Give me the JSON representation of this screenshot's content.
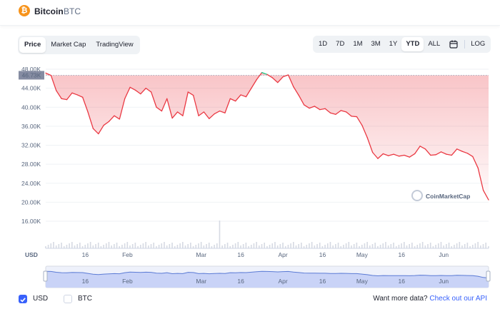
{
  "coin": {
    "name": "Bitcoin",
    "symbol": "BTC",
    "logo_glyph": "₿"
  },
  "view_tabs": [
    {
      "label": "Price",
      "active": true
    },
    {
      "label": "Market Cap",
      "active": false
    },
    {
      "label": "TradingView",
      "active": false
    }
  ],
  "range_tabs": [
    {
      "label": "1D",
      "active": false
    },
    {
      "label": "7D",
      "active": false
    },
    {
      "label": "1M",
      "active": false
    },
    {
      "label": "3M",
      "active": false
    },
    {
      "label": "1Y",
      "active": false
    },
    {
      "label": "YTD",
      "active": true
    },
    {
      "label": "ALL",
      "active": false
    }
  ],
  "calendar_icon": "calendar-icon",
  "log_label": "LOG",
  "currency_label": "USD",
  "watermark": "CoinMarketCap",
  "colors": {
    "up": "#16c784",
    "down": "#ea3943",
    "accent": "#3861fb"
  },
  "chart_data": {
    "type": "line",
    "ylim": [
      16000,
      48000
    ],
    "ytick_labels": [
      "48.00K",
      "44.00K",
      "40.00K",
      "36.00K",
      "32.00K",
      "28.00K",
      "24.00K",
      "20.00K",
      "16.00K"
    ],
    "yticks": [
      48000,
      44000,
      40000,
      36000,
      32000,
      28000,
      24000,
      20000,
      16000
    ],
    "x_labels": [
      "16",
      "Feb",
      "Mar",
      "16",
      "Apr",
      "16",
      "May",
      "16",
      "Jun"
    ],
    "x_label_days": [
      15,
      31,
      59,
      74,
      90,
      105,
      120,
      135,
      151
    ],
    "reference_price": 46730,
    "reference_label": "46.73K",
    "x_range_days": [
      0,
      168
    ],
    "series": [
      {
        "days": [
          0,
          2,
          4,
          6,
          8,
          10,
          12,
          14,
          16,
          18,
          20,
          22,
          24,
          26,
          28,
          30,
          32,
          34,
          36,
          38,
          40,
          42,
          44,
          46,
          48,
          50,
          52,
          54,
          56,
          58,
          60,
          62,
          64,
          66,
          68,
          70,
          72,
          74,
          76,
          78,
          80,
          82,
          84,
          86,
          88,
          90,
          92,
          94,
          96,
          98,
          100,
          102,
          104,
          106,
          108,
          110,
          112,
          114,
          116,
          118,
          120,
          122,
          124,
          126,
          128,
          130,
          132,
          134,
          136,
          138,
          140,
          142,
          144,
          146,
          148,
          150,
          152,
          154,
          156,
          158,
          160,
          162,
          164,
          166,
          168
        ],
        "values": [
          47200,
          46700,
          43500,
          41800,
          41600,
          43000,
          42600,
          42100,
          39000,
          35500,
          34400,
          36200,
          37000,
          38200,
          37500,
          41800,
          44200,
          43600,
          42800,
          44000,
          43200,
          40000,
          39200,
          41800,
          37700,
          39000,
          38200,
          43200,
          42500,
          38200,
          39000,
          37600,
          38600,
          39200,
          38800,
          41800,
          41300,
          42600,
          42200,
          44000,
          45800,
          47300,
          46900,
          46200,
          45200,
          46400,
          46800,
          44300,
          42500,
          40500,
          39800,
          40200,
          39500,
          39700,
          38800,
          38500,
          39300,
          39000,
          38100,
          38000,
          36200,
          33600,
          30500,
          29200,
          30200,
          29800,
          30100,
          29700,
          29900,
          29500,
          30200,
          31800,
          31200,
          29900,
          30000,
          30600,
          30100,
          29900,
          31200,
          30700,
          30300,
          29600,
          27200,
          22500,
          20500
        ]
      }
    ],
    "navigator": {
      "ylim": [
        16000,
        48000
      ]
    }
  },
  "footer": {
    "usd_label": "USD",
    "btc_label": "BTC",
    "usd_checked": true,
    "btc_checked": false,
    "api_text": "Want more data?",
    "api_link": "Check out our API"
  }
}
